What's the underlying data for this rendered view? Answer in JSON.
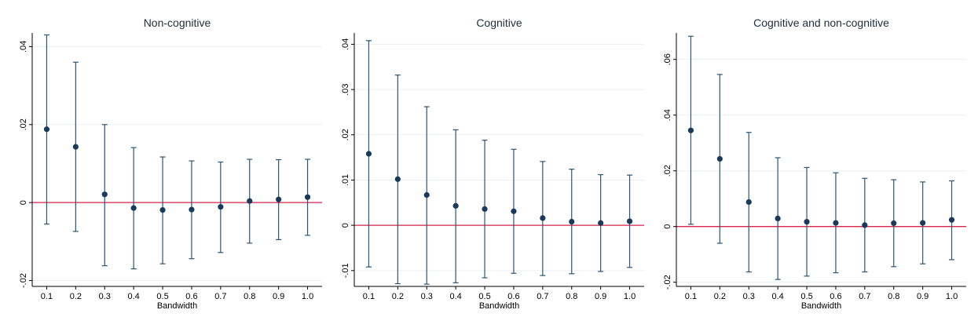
{
  "colors": {
    "marker": "#1a3a5c",
    "errorbar": "#2b5676",
    "zero_line": "#d6244a",
    "grid": "#eaf0f4",
    "axis": "#000000",
    "title": "#1e2d3d"
  },
  "chart_data": [
    {
      "type": "scatter",
      "title": "Non-cognitive",
      "xlabel": "Bandwidth",
      "ylabel": "",
      "x": [
        "0.1",
        "0.2",
        "0.3",
        "0.4",
        "0.5",
        "0.6",
        "0.7",
        "0.8",
        "0.9",
        "1.0"
      ],
      "estimate": [
        0.0188,
        0.0143,
        0.0021,
        -0.0014,
        -0.0019,
        -0.0018,
        -0.0011,
        0.0004,
        0.0008,
        0.0014
      ],
      "ci_low": [
        -0.0055,
        -0.0074,
        -0.0162,
        -0.017,
        -0.0157,
        -0.0144,
        -0.0128,
        -0.0104,
        -0.0095,
        -0.0084
      ],
      "ci_high": [
        0.043,
        0.036,
        0.02,
        0.0141,
        0.0117,
        0.0107,
        0.0104,
        0.0111,
        0.011,
        0.0111
      ],
      "ylim": [
        -0.0215,
        0.0435
      ],
      "yticks": [
        -0.02,
        0,
        0.02,
        0.04
      ],
      "ytick_labels": [
        "-.02",
        "0",
        ".02",
        ".04"
      ],
      "reference_line": 0,
      "grid": true
    },
    {
      "type": "scatter",
      "title": "Cognitive",
      "xlabel": "Bandwidth",
      "ylabel": "",
      "x": [
        "0.1",
        "0.2",
        "0.3",
        "0.4",
        "0.5",
        "0.6",
        "0.7",
        "0.8",
        "0.9",
        "1.0"
      ],
      "estimate": [
        0.0158,
        0.0102,
        0.0067,
        0.0043,
        0.0036,
        0.0031,
        0.0016,
        0.0008,
        0.0005,
        0.0009
      ],
      "ci_low": [
        -0.0092,
        -0.0129,
        -0.013,
        -0.0127,
        -0.0116,
        -0.0106,
        -0.0111,
        -0.0107,
        -0.0102,
        -0.0093
      ],
      "ci_high": [
        0.0408,
        0.0332,
        0.0262,
        0.0211,
        0.0188,
        0.0168,
        0.0141,
        0.0124,
        0.0112,
        0.0111
      ],
      "ylim": [
        -0.0135,
        0.0425
      ],
      "yticks": [
        -0.01,
        0,
        0.01,
        0.02,
        0.03,
        0.04
      ],
      "ytick_labels": [
        "-.01",
        "0",
        ".01",
        ".02",
        ".03",
        ".04"
      ],
      "reference_line": 0,
      "grid": true
    },
    {
      "type": "scatter",
      "title": "Cognitive and non-cognitive",
      "xlabel": "Bandwidth",
      "ylabel": "",
      "x": [
        "0.1",
        "0.2",
        "0.3",
        "0.4",
        "0.5",
        "0.6",
        "0.7",
        "0.8",
        "0.9",
        "1.0"
      ],
      "estimate": [
        0.0345,
        0.0243,
        0.0088,
        0.0029,
        0.0017,
        0.0013,
        0.0005,
        0.0012,
        0.0013,
        0.0024
      ],
      "ci_low": [
        0.0008,
        -0.006,
        -0.0163,
        -0.019,
        -0.0178,
        -0.0166,
        -0.0163,
        -0.0144,
        -0.0134,
        -0.0119
      ],
      "ci_high": [
        0.0683,
        0.0546,
        0.0338,
        0.0247,
        0.0212,
        0.0193,
        0.0173,
        0.0168,
        0.016,
        0.0164
      ],
      "ylim": [
        -0.0215,
        0.0695
      ],
      "yticks": [
        -0.02,
        0,
        0.02,
        0.04,
        0.06
      ],
      "ytick_labels": [
        "-.02",
        "0",
        ".02",
        ".04",
        ".06"
      ],
      "reference_line": 0,
      "grid": true
    }
  ]
}
